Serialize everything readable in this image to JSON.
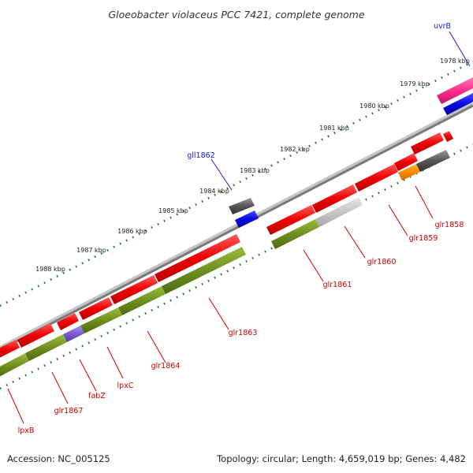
{
  "title": "Gloeobacter violaceus PCC 7421, complete genome",
  "footer": {
    "accession": "Accession: NC_005125",
    "summary": "Topology: circular; Length: 4,659,019 bp; Genes: 4,482"
  },
  "scale_labels": [
    "1978 kbp",
    "1979 kbp",
    "1980 kbp",
    "1981 kbp",
    "1982 kbp",
    "1983 kbp",
    "1984 kbp",
    "1985 kbp",
    "1986 kbp",
    "1987 kbp",
    "1988 kbp"
  ],
  "gene_labels": [
    {
      "id": "uvrB",
      "text": "uvrB",
      "color": "#1a1ad6"
    },
    {
      "id": "gll1862",
      "text": "gll1862",
      "color": "#1a1ad6"
    },
    {
      "id": "glr1858",
      "text": "glr1858",
      "color": "#d00000"
    },
    {
      "id": "glr1859",
      "text": "glr1859",
      "color": "#d00000"
    },
    {
      "id": "glr1860",
      "text": "glr1860",
      "color": "#d00000"
    },
    {
      "id": "glr1861",
      "text": "glr1861",
      "color": "#d00000"
    },
    {
      "id": "glr1863",
      "text": "glr1863",
      "color": "#d00000"
    },
    {
      "id": "glr1864",
      "text": "glr1864",
      "color": "#d00000"
    },
    {
      "id": "lpxC",
      "text": "lpxC",
      "color": "#d00000"
    },
    {
      "id": "fabZ",
      "text": "fabZ",
      "color": "#d00000"
    },
    {
      "id": "glr1867",
      "text": "glr1867",
      "color": "#d00000"
    },
    {
      "id": "lpxB",
      "text": "lpxB",
      "color": "#d00000"
    }
  ],
  "colors": {
    "forward_gene": "#ee0000",
    "reverse_gene": "#0a0ae0",
    "cds_feature": "#6e8f1e",
    "backbone": "#8a8a8a",
    "tick": "#1a7a1a",
    "pseudo_gene": "#555555",
    "rna_gene": "#ff8c00",
    "highlight_gene": "#ff2d8a",
    "misc_feature": "#7a5ad0"
  }
}
